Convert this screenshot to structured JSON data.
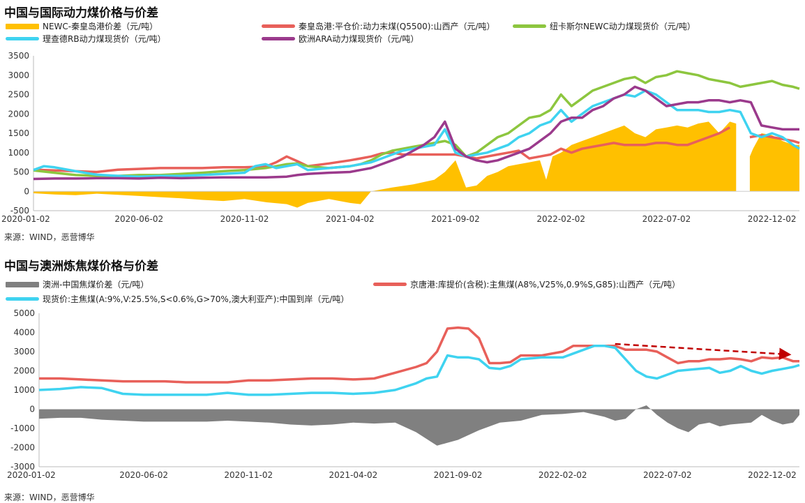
{
  "chart_data": [
    {
      "type": "line",
      "title": "中国与国际动力煤价格与价差",
      "source": "来源：WIND，恶营博华",
      "ylim": [
        -500,
        3500
      ],
      "yticks": [
        -500,
        0,
        500,
        1000,
        1500,
        2000,
        2500,
        3000,
        3500
      ],
      "x_tick_labels": [
        "2020-01-02",
        "2020-06-02",
        "2020-11-02",
        "2021-04-02",
        "2021-09-02",
        "2022-02-02",
        "2022-07-02",
        "2022-12-02"
      ],
      "x_range": [
        0,
        36.3
      ],
      "legend": [
        {
          "name": "NEWC-秦皇岛港价差（元/吨）",
          "color": "#FFC000"
        },
        {
          "name": "秦皇岛港:平仓价:动力末煤(Q5500):山西产（元/吨）",
          "color": "#E8605A"
        },
        {
          "name": "纽卡斯尔NEWC动力煤现货价（元/吨）",
          "color": "#8DC63F"
        },
        {
          "name": "理查德RB动力煤现货价（元/吨）",
          "color": "#3FD3F0"
        },
        {
          "name": "欧洲ARA动力煤现货价（元/吨）",
          "color": "#9B3A8C"
        }
      ],
      "series": [
        {
          "name": "NEWC-秦皇岛港价差（元/吨）",
          "kind": "area",
          "color": "#FFC000",
          "x": [
            0,
            1,
            2,
            3,
            4,
            5,
            6,
            7,
            8,
            9,
            10,
            11,
            12,
            12.5,
            13,
            14,
            15,
            15.5,
            16,
            17,
            18,
            19,
            19.5,
            20,
            20.5,
            21,
            21.5,
            22,
            22.5,
            23,
            24,
            24.3,
            24.6,
            25,
            25.5,
            26,
            26.5,
            27,
            27.5,
            28,
            28.5,
            29,
            29.5,
            30,
            30.5,
            31,
            31.5,
            32,
            32.5,
            33,
            33.3,
            33.35,
            33.9,
            33.95,
            34.1,
            34.5,
            35,
            35.5,
            36,
            36.3
          ],
          "y": [
            -50,
            -80,
            -100,
            -60,
            -90,
            -120,
            -150,
            -180,
            -220,
            -250,
            -200,
            -280,
            -330,
            -420,
            -300,
            -200,
            -300,
            -330,
            0,
            100,
            180,
            300,
            500,
            800,
            100,
            150,
            400,
            500,
            650,
            700,
            800,
            300,
            900,
            1000,
            1200,
            1300,
            1400,
            1500,
            1600,
            1700,
            1500,
            1400,
            1600,
            1650,
            1700,
            1650,
            1750,
            1800,
            1500,
            1800,
            1750,
            null,
            null,
            900,
            1100,
            1500,
            1450,
            1300,
            1200,
            1200
          ]
        },
        {
          "name": "秦皇岛港:平仓价:动力末煤(Q5500):山西产（元/吨）",
          "kind": "line",
          "color": "#E8605A",
          "x": [
            0,
            1,
            2,
            3,
            4,
            5,
            6,
            7,
            8,
            9,
            10,
            11,
            11.5,
            12,
            12.5,
            13,
            14,
            15,
            15.5,
            16,
            16.5,
            17,
            17.5,
            18,
            18.5,
            19,
            19.5,
            20,
            20.5,
            21,
            21.5,
            22,
            22.5,
            23,
            23.5,
            24,
            24.5,
            25,
            25.5,
            26,
            26.5,
            27,
            27.5,
            28,
            28.5,
            29,
            29.5,
            30,
            30.5,
            31,
            31.5,
            32,
            32.5,
            33,
            33.3,
            33.35,
            33.9,
            33.95,
            34.5,
            35,
            35.5,
            36,
            36.3
          ],
          "y": [
            560,
            540,
            520,
            500,
            560,
            580,
            600,
            600,
            600,
            620,
            620,
            640,
            750,
            900,
            780,
            650,
            720,
            800,
            850,
            900,
            980,
            1000,
            950,
            950,
            950,
            950,
            950,
            950,
            900,
            850,
            900,
            950,
            1000,
            1050,
            850,
            900,
            950,
            1100,
            1000,
            1100,
            1150,
            1200,
            1250,
            1200,
            1200,
            1200,
            1250,
            1250,
            1200,
            1200,
            1300,
            1400,
            1500,
            1650,
            null,
            null,
            null,
            1400,
            1450,
            1400,
            1350,
            1300,
            1250
          ]
        },
        {
          "name": "纽卡斯尔NEWC动力煤现货价（元/吨）",
          "kind": "line",
          "color": "#8DC63F",
          "x": [
            0,
            1,
            2,
            3,
            4,
            5,
            6,
            7,
            8,
            9,
            10,
            11,
            11.5,
            12,
            12.5,
            13,
            14,
            15,
            15.5,
            16,
            16.5,
            17,
            17.5,
            18,
            18.5,
            19,
            19.5,
            20,
            20.5,
            21,
            21.5,
            22,
            22.5,
            23,
            23.5,
            24,
            24.5,
            25,
            25.5,
            26,
            26.5,
            27,
            27.5,
            28,
            28.5,
            29,
            29.5,
            30,
            30.5,
            31,
            31.5,
            32,
            32.5,
            33,
            33.5,
            34,
            34.5,
            35,
            35.5,
            36,
            36.3
          ],
          "y": [
            540,
            480,
            420,
            400,
            400,
            420,
            420,
            450,
            480,
            520,
            550,
            600,
            650,
            700,
            720,
            650,
            600,
            650,
            700,
            800,
            950,
            1050,
            1100,
            1150,
            1200,
            1250,
            1300,
            1200,
            900,
            1000,
            1200,
            1400,
            1500,
            1700,
            1900,
            1950,
            2100,
            2500,
            2200,
            2400,
            2600,
            2700,
            2800,
            2900,
            2950,
            2800,
            2950,
            3000,
            3100,
            3050,
            3000,
            2900,
            2850,
            2800,
            2700,
            2750,
            2800,
            2850,
            2750,
            2700,
            2650
          ]
        },
        {
          "name": "理查德RB动力煤现货价（元/吨）",
          "kind": "line",
          "color": "#3FD3F0",
          "x": [
            0,
            0.5,
            1,
            2,
            3,
            4,
            5,
            6,
            7,
            8,
            9,
            10,
            10.5,
            11,
            11.5,
            12,
            12.5,
            13,
            14,
            15,
            15.5,
            16,
            16.5,
            17,
            17.5,
            18,
            18.5,
            19,
            19.5,
            20,
            20.5,
            21,
            21.5,
            22,
            22.5,
            23,
            23.5,
            24,
            24.5,
            25,
            25.5,
            26,
            26.5,
            27,
            27.5,
            28,
            28.5,
            29,
            29.5,
            30,
            30.5,
            31,
            31.5,
            32,
            32.5,
            33,
            33.5,
            34,
            34.5,
            35,
            35.5,
            36,
            36.3
          ],
          "y": [
            550,
            650,
            620,
            520,
            430,
            400,
            380,
            400,
            400,
            420,
            450,
            480,
            650,
            700,
            600,
            650,
            700,
            550,
            600,
            650,
            700,
            750,
            850,
            950,
            1050,
            1100,
            1150,
            1200,
            1600,
            1000,
            900,
            950,
            1000,
            1100,
            1200,
            1400,
            1500,
            1700,
            1800,
            2100,
            1800,
            2000,
            2200,
            2300,
            2400,
            2500,
            2450,
            2600,
            2500,
            2300,
            2100,
            2100,
            2100,
            2050,
            2050,
            2100,
            2050,
            1500,
            1400,
            1500,
            1400,
            1200,
            1100
          ]
        },
        {
          "name": "欧洲ARA动力煤现货价（元/吨）",
          "kind": "line",
          "color": "#9B3A8C",
          "x": [
            0,
            1,
            2,
            3,
            4,
            5,
            6,
            7,
            8,
            9,
            10,
            11,
            11.5,
            12,
            12.5,
            13,
            14,
            15,
            15.5,
            16,
            16.5,
            17,
            17.5,
            18,
            18.5,
            19,
            19.5,
            20,
            20.5,
            21,
            21.5,
            22,
            22.5,
            23,
            23.5,
            24,
            24.5,
            25,
            25.5,
            26,
            26.5,
            27,
            27.5,
            28,
            28.5,
            29,
            29.5,
            30,
            30.5,
            31,
            31.5,
            32,
            32.5,
            33,
            33.5,
            34,
            34.5,
            35,
            35.5,
            36,
            36.3
          ],
          "y": [
            320,
            330,
            330,
            340,
            340,
            330,
            350,
            340,
            350,
            360,
            360,
            360,
            370,
            380,
            420,
            450,
            480,
            500,
            550,
            600,
            700,
            800,
            900,
            1050,
            1200,
            1400,
            1800,
            1100,
            900,
            800,
            750,
            800,
            900,
            1000,
            1100,
            1300,
            1500,
            1800,
            1900,
            1900,
            2100,
            2200,
            2400,
            2500,
            2700,
            2600,
            2400,
            2200,
            2250,
            2300,
            2300,
            2350,
            2350,
            2300,
            2350,
            2300,
            1700,
            1650,
            1600,
            1600,
            1600
          ]
        }
      ]
    },
    {
      "type": "line",
      "title": "中国与澳洲炼焦煤价格与价差",
      "source": "来源：WIND，恶营博华",
      "ylim": [
        -3000,
        5000
      ],
      "yticks": [
        -3000,
        -2000,
        -1000,
        0,
        1000,
        2000,
        3000,
        4000,
        5000
      ],
      "x_tick_labels": [
        "2020-01-02",
        "2020-06-02",
        "2020-11-02",
        "2021-04-02",
        "2021-09-02",
        "2022-02-02",
        "2022-07-02",
        "2022-12-02"
      ],
      "x_range": [
        0,
        36.3
      ],
      "legend": [
        {
          "name": "澳洲-中国焦煤价差（元/吨）",
          "color": "#808080"
        },
        {
          "name": "京唐港:库提价(含税):主焦煤(A8%,V25%,0.9%S,G85):山西产（元/吨）",
          "color": "#E8605A"
        },
        {
          "name": "现货价:主焦煤(A:9%,V:25.5%,S<0.6%,G>70%,澳大利亚产):中国到岸（元/吨）",
          "color": "#3FD3F0"
        }
      ],
      "series": [
        {
          "name": "澳洲-中国焦煤价差（元/吨）",
          "kind": "area",
          "color": "#808080",
          "x": [
            0,
            1,
            2,
            3,
            4,
            5,
            6,
            7,
            8,
            9,
            10,
            11,
            12,
            13,
            14,
            15,
            16,
            17,
            18,
            19,
            20,
            21,
            22,
            23,
            24,
            25,
            26,
            27,
            27.5,
            28,
            28.5,
            29,
            29.5,
            30,
            30.5,
            31,
            31.5,
            32,
            32.5,
            33,
            34,
            34.5,
            35,
            35.5,
            36,
            36.3
          ],
          "y": [
            -500,
            -450,
            -450,
            -550,
            -600,
            -650,
            -650,
            -650,
            -650,
            -600,
            -650,
            -700,
            -800,
            -850,
            -800,
            -700,
            -750,
            -700,
            -1200,
            -1900,
            -1600,
            -1100,
            -700,
            -600,
            -300,
            -250,
            -150,
            -400,
            -600,
            -500,
            0,
            200,
            -300,
            -700,
            -1000,
            -1200,
            -800,
            -700,
            -900,
            -800,
            -700,
            -300,
            -600,
            -800,
            -700,
            -300
          ]
        },
        {
          "name": "京唐港:库提价(含税):主焦煤(A8%,V25%,0.9%S,G85):山西产（元/吨）",
          "kind": "line",
          "color": "#E8605A",
          "x": [
            0,
            1,
            2,
            3,
            4,
            5,
            6,
            7,
            8,
            9,
            10,
            11,
            12,
            13,
            14,
            15,
            16,
            17,
            18,
            18.5,
            19,
            19.5,
            20,
            20.5,
            21,
            21.5,
            22,
            22.5,
            23,
            24,
            25,
            25.5,
            26,
            26.5,
            27,
            27.5,
            28,
            28.5,
            29,
            29.5,
            30,
            30.5,
            31,
            31.5,
            32,
            32.5,
            33,
            33.5,
            34,
            34.5,
            35,
            35.5,
            36,
            36.3
          ],
          "y": [
            1600,
            1600,
            1550,
            1500,
            1450,
            1450,
            1450,
            1400,
            1400,
            1400,
            1500,
            1500,
            1550,
            1600,
            1600,
            1550,
            1600,
            1900,
            2200,
            2400,
            3000,
            4200,
            4250,
            4200,
            3700,
            2400,
            2400,
            2450,
            2800,
            2800,
            3000,
            3300,
            3300,
            3300,
            3300,
            3300,
            3100,
            3100,
            3100,
            3000,
            2700,
            2400,
            2500,
            2500,
            2600,
            2600,
            2650,
            2600,
            2500,
            2700,
            2650,
            2700,
            2500,
            2500
          ]
        },
        {
          "name": "现货价:主焦煤(A:9%,V:25.5%,S<0.6%,G>70%,澳大利亚产):中国到岸（元/吨）",
          "kind": "line",
          "color": "#3FD3F0",
          "x": [
            0,
            1,
            2,
            3,
            4,
            5,
            6,
            7,
            8,
            9,
            10,
            11,
            12,
            13,
            14,
            15,
            16,
            17,
            18,
            18.5,
            19,
            19.5,
            20,
            20.5,
            21,
            21.5,
            22,
            22.5,
            23,
            24,
            25,
            25.5,
            26,
            26.5,
            27,
            27.5,
            28,
            28.5,
            29,
            29.5,
            30,
            30.5,
            31,
            31.5,
            32,
            32.5,
            33,
            33.5,
            34,
            34.5,
            35,
            35.5,
            36,
            36.3
          ],
          "y": [
            1000,
            1050,
            1150,
            1100,
            800,
            750,
            750,
            750,
            750,
            850,
            750,
            750,
            800,
            850,
            850,
            800,
            850,
            1000,
            1350,
            1600,
            1700,
            2800,
            2700,
            2700,
            2600,
            2150,
            2100,
            2250,
            2600,
            2700,
            2700,
            2900,
            3100,
            3300,
            3300,
            3200,
            2600,
            2000,
            1700,
            1600,
            1800,
            2000,
            2050,
            2100,
            2150,
            1900,
            2000,
            2250,
            2000,
            1850,
            2000,
            2100,
            2200,
            2300
          ]
        }
      ],
      "annotation": {
        "type": "arrow",
        "color": "#C00000",
        "dashed": true,
        "x": [
          27.5,
          35.8
        ],
        "y": [
          3400,
          2850
        ]
      }
    }
  ]
}
